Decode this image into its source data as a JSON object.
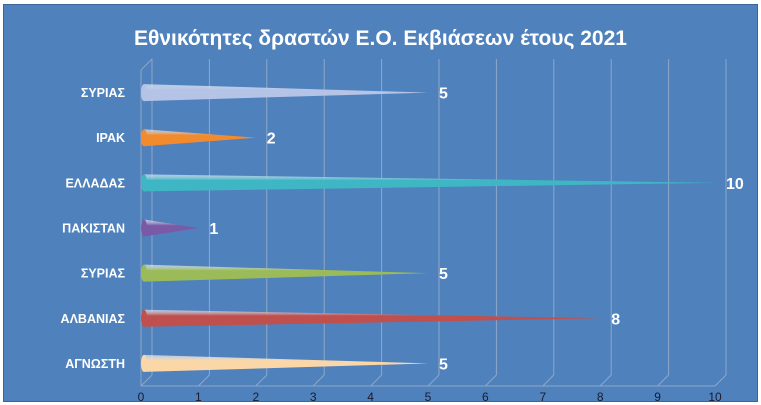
{
  "chart_data": {
    "type": "bar",
    "orientation": "horizontal",
    "title": "Εθνικότητες δραστών Ε.Ο. Εκβιάσεων έτους 2021",
    "xlabel": "",
    "ylabel": "",
    "categories": [
      "ΣΥΡΙΑΣ",
      "ΙΡΑΚ",
      "ΕΛΛΑΔΑΣ",
      "ΠΑΚΙΣΤΑΝ",
      "ΣΥΡΙΑΣ",
      "ΑΛΒΑΝΙΑΣ",
      "ΑΓΝΩΣΤΗ"
    ],
    "values": [
      5,
      2,
      10,
      1,
      5,
      8,
      5
    ],
    "xlim": [
      0,
      10
    ],
    "x_ticks": [
      "0",
      "1",
      "2",
      "3",
      "4",
      "5",
      "6",
      "7",
      "8",
      "9",
      "10"
    ],
    "grid": true,
    "legend": "none",
    "bar_colors": [
      "#b4c3e6",
      "#f28a2e",
      "#3fb6c4",
      "#7a5aa6",
      "#9bbb59",
      "#c0504d",
      "#fbd7a8"
    ],
    "background_color": "#4f81bd"
  }
}
